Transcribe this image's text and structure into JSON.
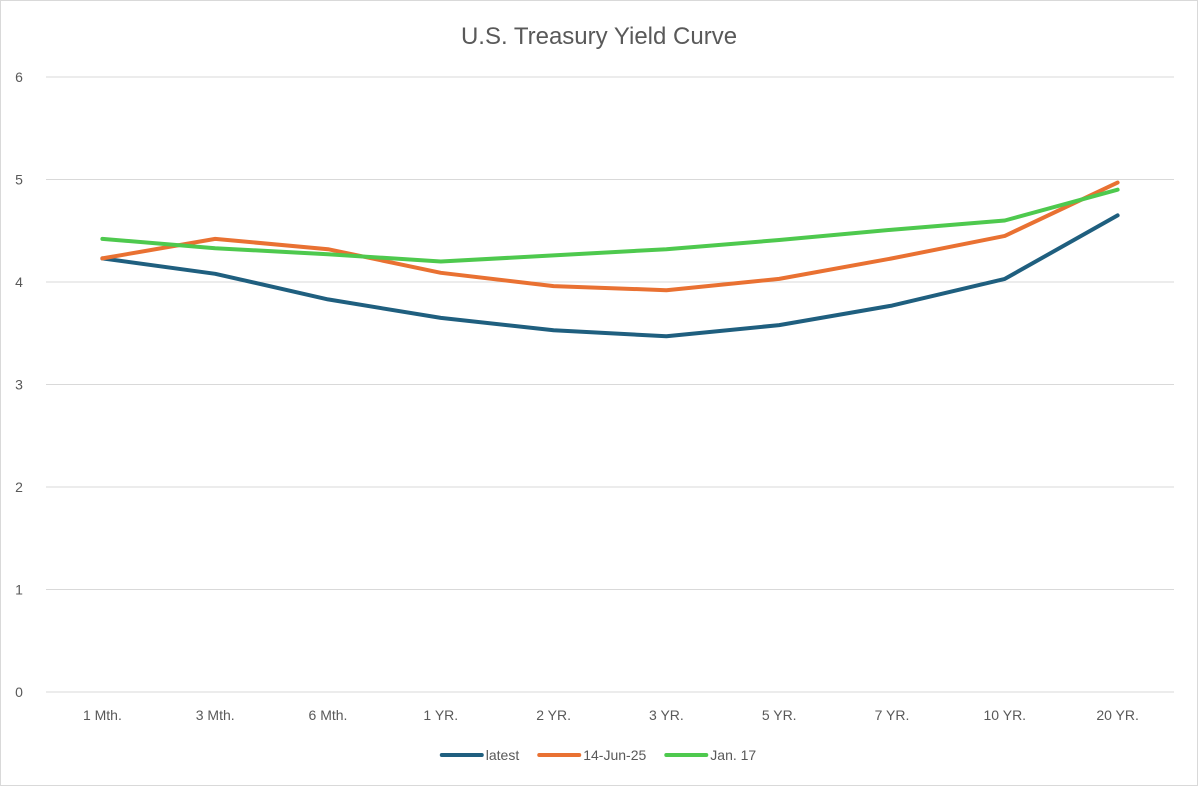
{
  "chart_data": {
    "type": "line",
    "title": "U.S. Treasury Yield Curve",
    "xlabel": "",
    "ylabel": "",
    "ylim": [
      0,
      6
    ],
    "yticks": [
      0,
      1,
      2,
      3,
      4,
      5,
      6
    ],
    "grid": true,
    "legend_position": "bottom",
    "categories": [
      "1 Mth.",
      "3 Mth.",
      "6 Mth.",
      "1 YR.",
      "2 YR.",
      "3 YR.",
      "5 YR.",
      "7 YR.",
      "10 YR.",
      "20 YR."
    ],
    "series": [
      {
        "name": "latest",
        "color": "#1f5f7f",
        "values": [
          4.23,
          4.08,
          3.83,
          3.65,
          3.53,
          3.47,
          3.58,
          3.77,
          4.03,
          4.65
        ]
      },
      {
        "name": "14-Jun-25",
        "color": "#e97132",
        "values": [
          4.23,
          4.42,
          4.32,
          4.09,
          3.96,
          3.92,
          4.03,
          4.23,
          4.45,
          4.97
        ]
      },
      {
        "name": "Jan. 17",
        "color": "#4ec94e",
        "values": [
          4.42,
          4.33,
          4.27,
          4.2,
          4.26,
          4.32,
          4.41,
          4.51,
          4.6,
          4.9
        ]
      }
    ]
  }
}
